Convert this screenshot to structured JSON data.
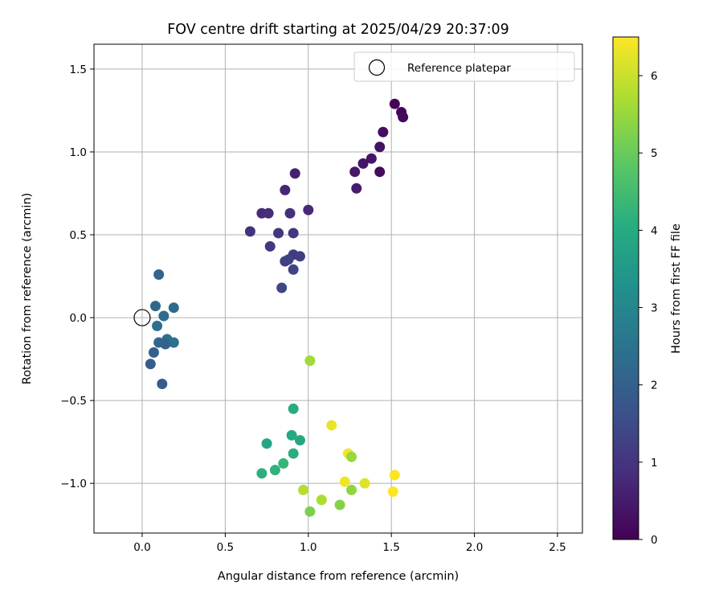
{
  "chart_data": {
    "type": "scatter",
    "title": "FOV centre drift starting at 2025/04/29 20:37:09",
    "xlabel": "Angular distance from reference (arcmin)",
    "ylabel": "Rotation from reference (arcmin)",
    "xlim": [
      -0.29,
      2.65
    ],
    "ylim": [
      -1.3,
      1.65
    ],
    "xticks": [
      0.0,
      0.5,
      1.0,
      1.5,
      2.0,
      2.5
    ],
    "xtick_labels": [
      "0.0",
      "0.5",
      "1.0",
      "1.5",
      "2.0",
      "2.5"
    ],
    "yticks": [
      -1.0,
      -0.5,
      0.0,
      0.5,
      1.0,
      1.5
    ],
    "ytick_labels": [
      "−1.0",
      "−0.5",
      "0.0",
      "0.5",
      "1.0",
      "1.5"
    ],
    "grid": true,
    "legend": {
      "placement": "top-right",
      "entries": [
        "Reference platepar"
      ]
    },
    "reference_point": {
      "x": 0.0,
      "y": 0.0,
      "label": "Reference platepar"
    },
    "colorbar": {
      "label": "Hours from first FF file",
      "range": [
        0,
        6.5
      ],
      "ticks": [
        0,
        1,
        2,
        3,
        4,
        5,
        6
      ],
      "tick_labels": [
        "0",
        "1",
        "2",
        "3",
        "4",
        "5",
        "6"
      ],
      "colormap": "viridis"
    },
    "points": [
      {
        "x": 1.52,
        "y": 1.29,
        "c": 0.05
      },
      {
        "x": 1.56,
        "y": 1.24,
        "c": 0.1
      },
      {
        "x": 1.57,
        "y": 1.21,
        "c": 0.15
      },
      {
        "x": 1.45,
        "y": 1.12,
        "c": 0.25
      },
      {
        "x": 1.43,
        "y": 1.03,
        "c": 0.3
      },
      {
        "x": 1.38,
        "y": 0.96,
        "c": 0.35
      },
      {
        "x": 1.33,
        "y": 0.93,
        "c": 0.4
      },
      {
        "x": 1.28,
        "y": 0.88,
        "c": 0.45
      },
      {
        "x": 1.43,
        "y": 0.88,
        "c": 0.2
      },
      {
        "x": 1.29,
        "y": 0.78,
        "c": 0.5
      },
      {
        "x": 0.92,
        "y": 0.87,
        "c": 0.6
      },
      {
        "x": 0.86,
        "y": 0.77,
        "c": 0.7
      },
      {
        "x": 0.72,
        "y": 0.63,
        "c": 0.8
      },
      {
        "x": 0.76,
        "y": 0.63,
        "c": 0.85
      },
      {
        "x": 0.89,
        "y": 0.63,
        "c": 0.9
      },
      {
        "x": 1.0,
        "y": 0.65,
        "c": 0.75
      },
      {
        "x": 0.65,
        "y": 0.52,
        "c": 0.95
      },
      {
        "x": 0.82,
        "y": 0.51,
        "c": 1.0
      },
      {
        "x": 0.91,
        "y": 0.51,
        "c": 1.05
      },
      {
        "x": 0.77,
        "y": 0.43,
        "c": 1.1
      },
      {
        "x": 0.91,
        "y": 0.38,
        "c": 1.15
      },
      {
        "x": 0.95,
        "y": 0.37,
        "c": 1.2
      },
      {
        "x": 0.86,
        "y": 0.34,
        "c": 1.25
      },
      {
        "x": 0.88,
        "y": 0.35,
        "c": 1.3
      },
      {
        "x": 0.91,
        "y": 0.29,
        "c": 1.35
      },
      {
        "x": 0.84,
        "y": 0.18,
        "c": 1.4
      },
      {
        "x": 0.1,
        "y": 0.26,
        "c": 2.1
      },
      {
        "x": 0.08,
        "y": 0.07,
        "c": 2.2
      },
      {
        "x": 0.19,
        "y": 0.06,
        "c": 2.25
      },
      {
        "x": 0.13,
        "y": 0.01,
        "c": 2.3
      },
      {
        "x": 0.09,
        "y": -0.05,
        "c": 2.35
      },
      {
        "x": 0.1,
        "y": -0.15,
        "c": 2.15
      },
      {
        "x": 0.15,
        "y": -0.13,
        "c": 2.4
      },
      {
        "x": 0.19,
        "y": -0.15,
        "c": 2.45
      },
      {
        "x": 0.14,
        "y": -0.16,
        "c": 2.05
      },
      {
        "x": 0.07,
        "y": -0.21,
        "c": 2.0
      },
      {
        "x": 0.05,
        "y": -0.28,
        "c": 1.95
      },
      {
        "x": 0.12,
        "y": -0.4,
        "c": 1.9
      },
      {
        "x": 1.01,
        "y": -0.26,
        "c": 5.6
      },
      {
        "x": 0.91,
        "y": -0.55,
        "c": 4.0
      },
      {
        "x": 0.9,
        "y": -0.71,
        "c": 3.95
      },
      {
        "x": 0.95,
        "y": -0.74,
        "c": 3.9
      },
      {
        "x": 0.75,
        "y": -0.76,
        "c": 3.85
      },
      {
        "x": 0.91,
        "y": -0.82,
        "c": 4.1
      },
      {
        "x": 0.85,
        "y": -0.88,
        "c": 4.3
      },
      {
        "x": 0.8,
        "y": -0.92,
        "c": 4.2
      },
      {
        "x": 0.72,
        "y": -0.94,
        "c": 4.15
      },
      {
        "x": 1.14,
        "y": -0.65,
        "c": 6.3
      },
      {
        "x": 1.24,
        "y": -0.82,
        "c": 6.4
      },
      {
        "x": 1.26,
        "y": -0.84,
        "c": 5.5
      },
      {
        "x": 1.22,
        "y": -0.99,
        "c": 6.35
      },
      {
        "x": 1.34,
        "y": -1.0,
        "c": 6.2
      },
      {
        "x": 1.52,
        "y": -0.95,
        "c": 6.45
      },
      {
        "x": 1.51,
        "y": -1.05,
        "c": 6.5
      },
      {
        "x": 0.97,
        "y": -1.04,
        "c": 5.8
      },
      {
        "x": 1.26,
        "y": -1.04,
        "c": 5.4
      },
      {
        "x": 1.08,
        "y": -1.1,
        "c": 5.7
      },
      {
        "x": 1.19,
        "y": -1.13,
        "c": 5.3
      },
      {
        "x": 1.01,
        "y": -1.17,
        "c": 5.2
      }
    ]
  }
}
